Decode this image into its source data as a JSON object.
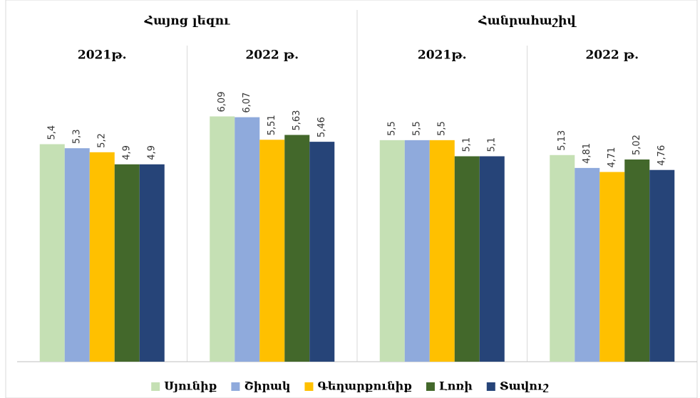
{
  "chart_data": {
    "type": "bar",
    "groups": [
      {
        "name": "Հայոց լեզու",
        "categories": [
          "2021թ.",
          "2022 թ."
        ]
      },
      {
        "name": "Հանրահաշիվ",
        "categories": [
          "2021թ.",
          "2022 թ."
        ]
      }
    ],
    "series": [
      {
        "name": "Սյունիք",
        "color": "#c5e0b4",
        "values": [
          5.4,
          6.09,
          5.5,
          5.13
        ],
        "value_labels": [
          "5,4",
          "6,09",
          "5,5",
          "5,13"
        ]
      },
      {
        "name": "Շիրակ",
        "color": "#8faadc",
        "values": [
          5.3,
          6.07,
          5.5,
          4.81
        ],
        "value_labels": [
          "5,3",
          "6,07",
          "5,5",
          "4,81"
        ]
      },
      {
        "name": "Գեղարքունիք",
        "color": "#ffc000",
        "values": [
          5.2,
          5.51,
          5.5,
          4.71
        ],
        "value_labels": [
          "5,2",
          "5,51",
          "5,5",
          "4,71"
        ]
      },
      {
        "name": "Լոռի",
        "color": "#43682b",
        "values": [
          4.9,
          5.63,
          5.1,
          5.02
        ],
        "value_labels": [
          "4,9",
          "5,63",
          "5,1",
          "5,02"
        ]
      },
      {
        "name": "Տավուշ",
        "color": "#264478",
        "values": [
          4.9,
          5.46,
          5.1,
          4.76
        ],
        "value_labels": [
          "4,9",
          "5,46",
          "5,1",
          "4,76"
        ]
      }
    ],
    "ylim": [
      0,
      7
    ],
    "legend": "bottom"
  }
}
